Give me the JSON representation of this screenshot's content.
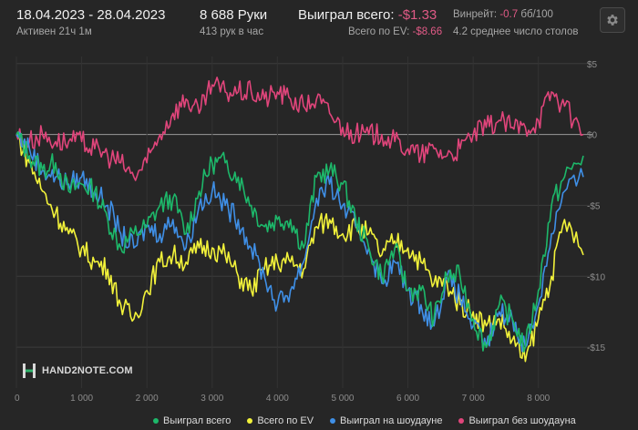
{
  "header": {
    "date_range": "18.04.2023 - 28.04.2023",
    "active": "Активен 21ч 1м",
    "hands": "8 688 Руки",
    "hands_per_hour": "413 рук в час",
    "won_label": "Выиграл всего:",
    "won_value": "-$1.33",
    "ev_label": "Всего по EV:",
    "ev_value": "-$8.66",
    "winrate_label": "Винрейт:",
    "winrate_value": "-0.7",
    "winrate_unit": "бб/100",
    "tables": "4.2 среднее число столов"
  },
  "logo_text": "HAND2NOTE.COM",
  "icons": {
    "settings": "gear-icon",
    "logo": "hand2note-logo-icon"
  },
  "colors": {
    "won": "#1db86a",
    "ev": "#f2f23a",
    "showdown": "#3f8fe6",
    "non_showdown": "#e0457b"
  },
  "chart_data": {
    "type": "line",
    "xlim": [
      0,
      8688
    ],
    "ylim": [
      -17.5,
      5.5
    ],
    "x_ticks": [
      0,
      1000,
      2000,
      3000,
      4000,
      5000,
      6000,
      7000,
      8000
    ],
    "x_tick_labels": [
      "0",
      "1 000",
      "2 000",
      "3 000",
      "4 000",
      "5 000",
      "6 000",
      "7 000",
      "8 000"
    ],
    "y_ticks": [
      5,
      0,
      -5,
      -10,
      -15
    ],
    "y_tick_labels": [
      "$5",
      "$0",
      "-$5",
      "-$10",
      "-$15"
    ],
    "grid": true,
    "legend_position": "bottom",
    "series": [
      {
        "name": "Выиграл всего",
        "color": "#1db86a",
        "x": [
          0,
          200,
          400,
          600,
          800,
          1000,
          1200,
          1400,
          1600,
          1800,
          2000,
          2200,
          2400,
          2600,
          2800,
          3000,
          3200,
          3400,
          3600,
          3800,
          4000,
          4200,
          4400,
          4600,
          4800,
          5000,
          5200,
          5400,
          5600,
          5800,
          6000,
          6200,
          6400,
          6600,
          6800,
          7000,
          7200,
          7400,
          7600,
          7800,
          8000,
          8200,
          8400,
          8688
        ],
        "y": [
          0,
          -1.5,
          -2.5,
          -2,
          -4,
          -3.5,
          -4,
          -6,
          -8,
          -7,
          -6.5,
          -5,
          -4.5,
          -7,
          -4,
          -2,
          -2,
          -3,
          -5,
          -6.5,
          -6,
          -6,
          -8,
          -3,
          -2.5,
          -3.5,
          -6,
          -8,
          -10,
          -8,
          -11,
          -11,
          -13,
          -10,
          -10,
          -13,
          -15,
          -12,
          -13,
          -15,
          -11,
          -5,
          -3,
          -1.5
        ]
      },
      {
        "name": "Всего по EV",
        "color": "#f2f23a",
        "x": [
          0,
          200,
          400,
          600,
          800,
          1000,
          1200,
          1400,
          1600,
          1800,
          2000,
          2200,
          2400,
          2600,
          2800,
          3000,
          3200,
          3400,
          3600,
          3800,
          4000,
          4200,
          4400,
          4600,
          4800,
          5000,
          5200,
          5400,
          5600,
          5800,
          6000,
          6200,
          6400,
          6600,
          6800,
          7000,
          7200,
          7400,
          7600,
          7800,
          8000,
          8200,
          8400,
          8688
        ],
        "y": [
          0,
          -2,
          -4,
          -5.5,
          -7,
          -8,
          -9,
          -9.5,
          -12,
          -13,
          -11,
          -9,
          -8.5,
          -9,
          -8,
          -8,
          -8.5,
          -10,
          -11,
          -9.5,
          -9,
          -9,
          -9.5,
          -6.5,
          -6,
          -7,
          -6.5,
          -7,
          -8.5,
          -7.5,
          -8,
          -9,
          -10.5,
          -10.5,
          -12,
          -12.5,
          -13.5,
          -13,
          -14.5,
          -16,
          -13,
          -10,
          -6,
          -8.5
        ]
      },
      {
        "name": "Выиграл на шоудауне",
        "color": "#3f8fe6",
        "x": [
          0,
          200,
          400,
          600,
          800,
          1000,
          1200,
          1400,
          1600,
          1800,
          2000,
          2200,
          2400,
          2600,
          2800,
          3000,
          3200,
          3400,
          3600,
          3800,
          4000,
          4200,
          4400,
          4600,
          4800,
          5000,
          5200,
          5400,
          5600,
          5800,
          6000,
          6200,
          6400,
          6600,
          6800,
          7000,
          7200,
          7400,
          7600,
          7800,
          8000,
          8200,
          8400,
          8688
        ],
        "y": [
          0,
          -1,
          -2.5,
          -3,
          -3.5,
          -3,
          -4,
          -5,
          -7,
          -8,
          -6.5,
          -7,
          -6,
          -8,
          -5,
          -4,
          -5,
          -6,
          -8,
          -10,
          -12,
          -11,
          -9,
          -4.5,
          -3.5,
          -5,
          -6.5,
          -8,
          -10.5,
          -9,
          -11,
          -12,
          -13.5,
          -10,
          -11.5,
          -13.5,
          -15,
          -12.5,
          -13,
          -15,
          -12,
          -7,
          -4,
          -3
        ]
      },
      {
        "name": "Выиграл без шоудауна",
        "color": "#e0457b",
        "x": [
          0,
          200,
          400,
          600,
          800,
          1000,
          1200,
          1400,
          1600,
          1800,
          2000,
          2200,
          2400,
          2600,
          2800,
          3000,
          3200,
          3400,
          3600,
          3800,
          4000,
          4200,
          4400,
          4600,
          4800,
          5000,
          5200,
          5400,
          5600,
          5800,
          6000,
          6200,
          6400,
          6600,
          6800,
          7000,
          7200,
          7400,
          7600,
          7800,
          8000,
          8200,
          8400,
          8688
        ],
        "y": [
          0,
          -0.5,
          0,
          -0.5,
          -0.5,
          -0.5,
          -1,
          -1.5,
          -2,
          -3,
          -2,
          0,
          1.5,
          2.5,
          1.5,
          3.5,
          3,
          3,
          3,
          2.5,
          3,
          2.5,
          2,
          2.5,
          1.5,
          0.5,
          0,
          0,
          0,
          -0.5,
          -1,
          -1.5,
          -1,
          -1.5,
          -1,
          0,
          0.5,
          1,
          0.5,
          0.5,
          1,
          3,
          2,
          0
        ]
      }
    ]
  }
}
